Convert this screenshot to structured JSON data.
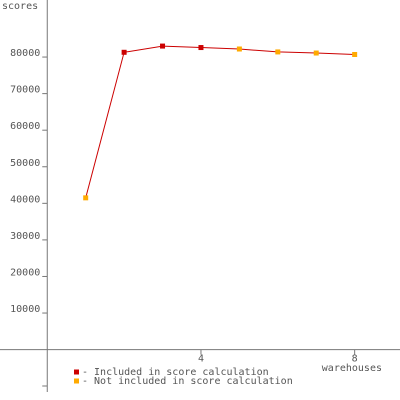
{
  "chart_data": {
    "type": "line",
    "y_label": "scores",
    "x_label": "warehouses",
    "x": [
      1,
      2,
      3,
      4,
      5,
      6,
      7,
      8
    ],
    "series": [
      {
        "color": "#cc0000",
        "values": [
          41500,
          81300,
          83000,
          82600,
          82200,
          81400,
          81100,
          80700
        ],
        "groups": [
          1,
          0,
          0,
          0,
          1,
          1,
          1,
          1
        ]
      }
    ],
    "legend": [
      {
        "label": "- Included in score calculation",
        "color": "#cc0000"
      },
      {
        "label": "- Not included in score calculation",
        "color": "#ffaa00"
      }
    ],
    "xlim": [
      -1.23,
      9.18
    ],
    "xticks": [
      4,
      8
    ],
    "ylim": [
      -13780,
      95600
    ],
    "yticks": [
      10000,
      20000,
      30000,
      40000,
      50000,
      60000,
      70000,
      80000
    ]
  }
}
